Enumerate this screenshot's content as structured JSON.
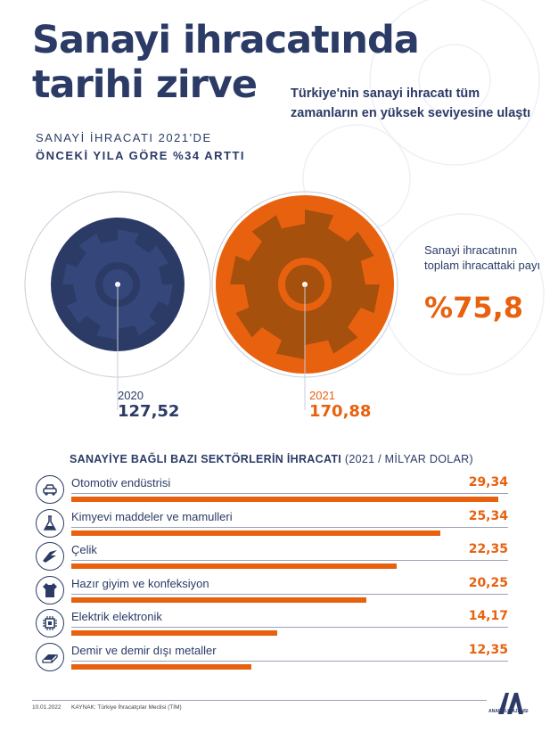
{
  "header": {
    "title_line1": "Sanayi ihracatında",
    "title_line2": "tarihi zirve",
    "subtitle": "Türkiye'nin sanayi ihracatı tüm zamanların en yüksek seviyesine ulaştı",
    "kicker_line1": "SANAYİ İHRACATI 2021'DE",
    "kicker_line2": "ÖNCEKİ YILA GÖRE %34 ARTTI"
  },
  "colors": {
    "navy": "#2b3b66",
    "orange": "#e8610f",
    "gear_dark": "#a5500c"
  },
  "totals": [
    {
      "year": "2020",
      "value": "127,52",
      "color": "#2b3b66"
    },
    {
      "year": "2021",
      "value": "170,88",
      "color": "#e8610f"
    }
  ],
  "share": {
    "label": "Sanayi ihracatının toplam ihracattaki payı",
    "value": "%75,8"
  },
  "chart_data": {
    "type": "bar",
    "title_bold": "SANAYİYE BAĞLI BAZI SEKTÖRLERİN İHRACATI",
    "title_rest": "(2021 / MİLYAR DOLAR)",
    "categories": [
      "Otomotiv endüstrisi",
      "Kimyevi maddeler ve mamulleri",
      "Çelik",
      "Hazır giyim ve konfeksiyon",
      "Elektrik elektronik",
      "Demir ve demir dışı metaller"
    ],
    "labels": [
      "29,34",
      "25,34",
      "22,35",
      "20,25",
      "14,17",
      "12,35"
    ],
    "values": [
      29.34,
      25.34,
      22.35,
      20.25,
      14.17,
      12.35
    ],
    "icons": [
      "car-icon",
      "flask-icon",
      "steel-icon",
      "shirt-icon",
      "chip-icon",
      "metal-bar-icon"
    ],
    "xlim": [
      0,
      30
    ]
  },
  "footer": {
    "date": "10.01.2022",
    "source": "KAYNAK: Türkiye İhracatçılar Meclisi (TİM)",
    "logo_text": "ANADOLU AJANSI"
  }
}
